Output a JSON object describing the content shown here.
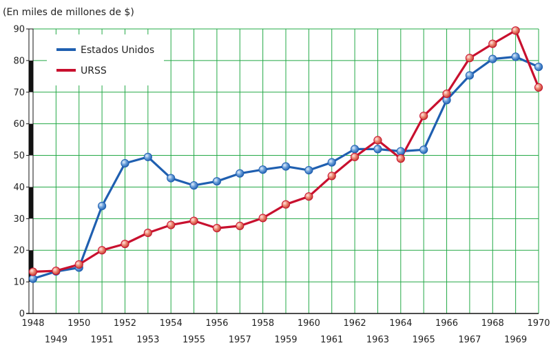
{
  "chart_data": {
    "type": "line",
    "unit_label": "(En miles de millones de $)",
    "x": [
      1948,
      1949,
      1950,
      1951,
      1952,
      1953,
      1954,
      1955,
      1956,
      1957,
      1958,
      1959,
      1960,
      1961,
      1962,
      1963,
      1964,
      1965,
      1966,
      1967,
      1968,
      1969,
      1970
    ],
    "xlim": [
      1948,
      1970
    ],
    "ylim": [
      0,
      90
    ],
    "yticks": [
      "0",
      "10",
      "20",
      "30",
      "40",
      "50",
      "60",
      "70",
      "80",
      "90"
    ],
    "xticks_upper": [
      "1948",
      "1950",
      "1952",
      "1954",
      "1956",
      "1958",
      "1960",
      "1962",
      "1964",
      "1966",
      "1968",
      "1970"
    ],
    "xticks_lower": [
      "1949",
      "1951",
      "1953",
      "1955",
      "1957",
      "1959",
      "1961",
      "1963",
      "1965",
      "1967",
      "1969"
    ],
    "grid": true,
    "legend_position": "top-left",
    "series": [
      {
        "name": "Estados Unidos",
        "color": "#1f5fb0",
        "values": [
          11.0,
          13.3,
          14.5,
          34.0,
          47.5,
          49.5,
          42.8,
          40.5,
          41.8,
          44.3,
          45.5,
          46.5,
          45.3,
          47.8,
          52.0,
          52.0,
          51.3,
          51.8,
          67.5,
          75.3,
          80.5,
          81.2,
          78.0
        ]
      },
      {
        "name": "URSS",
        "color": "#c8102e",
        "values": [
          13.2,
          13.5,
          15.5,
          20.0,
          22.0,
          25.5,
          28.0,
          29.3,
          27.0,
          27.7,
          30.2,
          34.5,
          37.0,
          43.5,
          49.5,
          54.8,
          49.0,
          62.5,
          69.5,
          80.8,
          85.3,
          89.5,
          71.5
        ]
      }
    ]
  }
}
